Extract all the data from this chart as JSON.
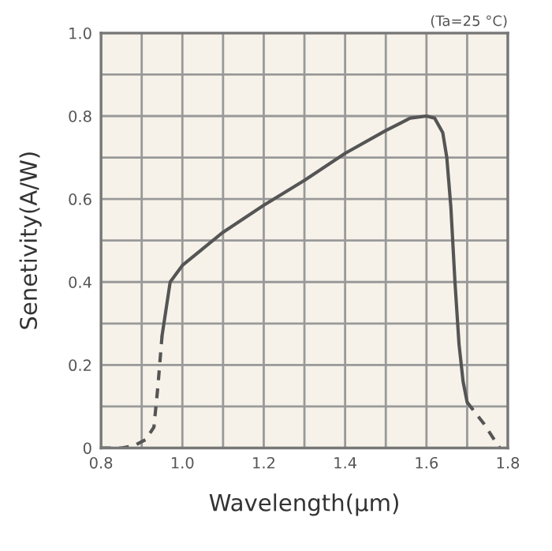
{
  "chart_data": {
    "type": "line",
    "xlabel": "Wavelength(μm)",
    "ylabel": "Senetivity(A/W)",
    "annotations": [
      "(Ta=25 °C)"
    ],
    "xlim": [
      0.8,
      1.8
    ],
    "ylim": [
      0,
      1.0
    ],
    "xticks": [
      0.8,
      {
        "value": 0.9,
        "label": null
      },
      {
        "value": 1.0,
        "label": "1.0"
      },
      {
        "value": 1.1,
        "label": null
      },
      1.2,
      {
        "value": 1.3,
        "label": null
      },
      1.4,
      {
        "value": 1.5,
        "label": null
      },
      1.6,
      {
        "value": 1.7,
        "label": null
      },
      1.8
    ],
    "yticks": [
      0,
      {
        "value": 0.1,
        "label": null
      },
      0.2,
      {
        "value": 0.3,
        "label": null
      },
      0.4,
      {
        "value": 0.5,
        "label": null
      },
      0.6,
      {
        "value": 0.7,
        "label": null
      },
      0.8,
      {
        "value": 0.9,
        "label": null
      },
      {
        "value": 1.0,
        "label": "1.0"
      }
    ],
    "grid": true,
    "marker": "none",
    "series": [
      {
        "color": "#555555",
        "line_style": "dashed",
        "x": [
          0.8,
          0.85,
          0.88,
          0.91,
          0.93,
          0.94,
          0.95,
          1.3,
          1.7,
          1.74,
          1.78
        ],
        "values": [
          0,
          0,
          0.005,
          0.02,
          0.05,
          0.15,
          0.27,
          null,
          0.11,
          0.06,
          0
        ]
      },
      {
        "color": "#555555",
        "line_style": "solid",
        "x": [
          0.95,
          0.97,
          1.0,
          1.05,
          1.1,
          1.2,
          1.3,
          1.4,
          1.5,
          1.56,
          1.6,
          1.62,
          1.64,
          1.65,
          1.66,
          1.67,
          1.68,
          1.69,
          1.7
        ],
        "values": [
          0.27,
          0.4,
          0.44,
          0.48,
          0.52,
          0.585,
          0.645,
          0.71,
          0.765,
          0.795,
          0.8,
          0.795,
          0.76,
          0.7,
          0.58,
          0.4,
          0.25,
          0.16,
          0.11
        ]
      }
    ]
  }
}
